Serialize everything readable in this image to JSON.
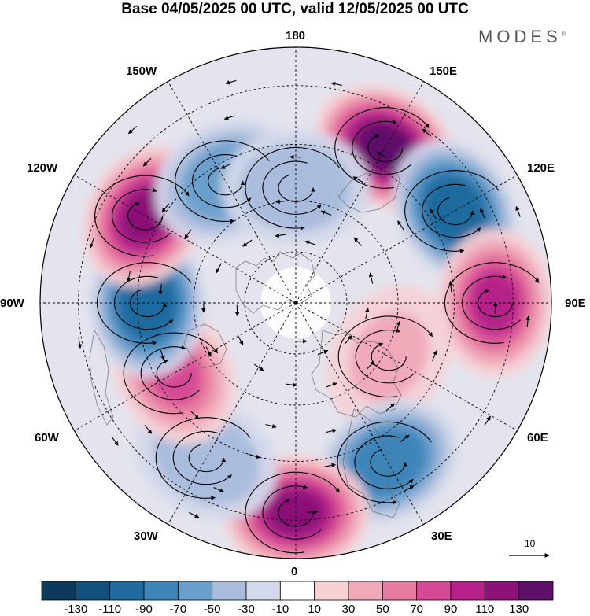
{
  "title": "Base 04/05/2025 00 UTC, valid 12/05/2025 00 UTC",
  "logo": {
    "text": "MODES",
    "mark": "®"
  },
  "longitude_labels": {
    "lon_180": "180",
    "lon_150e": "150E",
    "lon_120e": "120E",
    "lon_90e": "90E",
    "lon_60e": "60E",
    "lon_30e": "30E",
    "lon_0": "0",
    "lon_30w": "30W",
    "lon_60w": "60W",
    "lon_90w": "90W",
    "lon_120w": "120W",
    "lon_150w": "150W"
  },
  "reference_vector": {
    "label": "10"
  },
  "colorbar": {
    "tick_labels": [
      "-130",
      "-110",
      "-90",
      "-70",
      "-50",
      "-30",
      "-10",
      "10",
      "30",
      "50",
      "70",
      "90",
      "110",
      "130"
    ],
    "colors": [
      "#0d3a5c",
      "#12507e",
      "#1f6a9e",
      "#3e85b8",
      "#6a9fcb",
      "#a9bcdc",
      "#d3d8ea",
      "#ffffff",
      "#f6d2d6",
      "#f0a9b8",
      "#e77aa0",
      "#d44a94",
      "#b42189",
      "#8b1278",
      "#5e0f6a"
    ]
  },
  "anomaly_centers": [
    {
      "lon_label": "150E",
      "sign": "positive",
      "peak_class": 130
    },
    {
      "lon_label": "120E",
      "sign": "negative",
      "peak_class": -110
    },
    {
      "lon_label": "90E",
      "sign": "positive",
      "peak_class": 90
    },
    {
      "lon_label": "60E",
      "sign": "positive",
      "peak_class": 30
    },
    {
      "lon_label": "30E",
      "sign": "negative",
      "peak_class": -90
    },
    {
      "lon_label": "0",
      "sign": "positive",
      "peak_class": 110
    },
    {
      "lon_label": "30W",
      "sign": "negative",
      "peak_class": -50
    },
    {
      "lon_label": "60W",
      "sign": "positive",
      "peak_class": 70
    },
    {
      "lon_label": "90W",
      "sign": "negative",
      "peak_class": -110
    },
    {
      "lon_label": "120W",
      "sign": "positive",
      "peak_class": 110
    },
    {
      "lon_label": "150W",
      "sign": "negative",
      "peak_class": -70
    },
    {
      "lon_label": "180",
      "sign": "negative",
      "peak_class": -50
    }
  ]
}
